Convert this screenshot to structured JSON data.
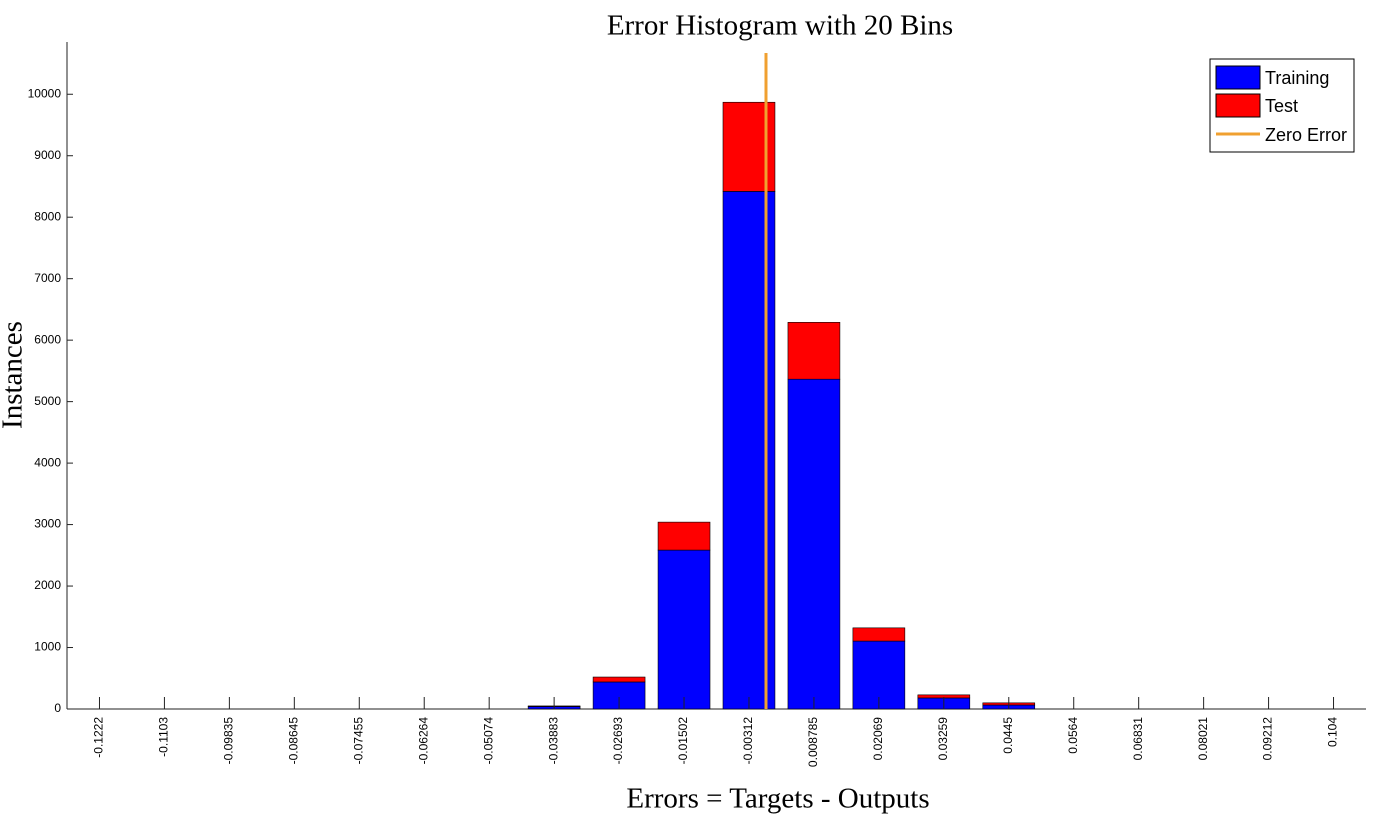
{
  "chart_data": {
    "type": "stacked_bar",
    "title": "Error Histogram with 20 Bins",
    "x_label": "Errors = Targets - Outputs",
    "y_label": "Instances",
    "categories": [
      "-0.1222",
      "-0.1103",
      "-0.09835",
      "-0.08645",
      "-0.07455",
      "-0.06264",
      "-0.05074",
      "-0.03883",
      "-0.02693",
      "-0.01502",
      "-0.00312",
      "0.008785",
      "0.02069",
      "0.03259",
      "0.0445",
      "0.0564",
      "0.06831",
      "0.08021",
      "0.09212",
      "0.104"
    ],
    "series": [
      {
        "name": "Training",
        "color": "#0000ff",
        "values": [
          0,
          0,
          0,
          0,
          0,
          0,
          0,
          40,
          440,
          2585,
          8420,
          5365,
          1105,
          180,
          65,
          0,
          0,
          0,
          0,
          0
        ]
      },
      {
        "name": "Test",
        "color": "#ff0000",
        "values": [
          0,
          0,
          0,
          0,
          0,
          0,
          0,
          10,
          80,
          455,
          1450,
          925,
          215,
          50,
          35,
          0,
          0,
          0,
          0,
          0
        ]
      }
    ],
    "reference_line": {
      "name": "Zero Error",
      "color": "#f0a030",
      "x": 0
    },
    "ylim": [
      0,
      10850
    ],
    "yticks": [
      0,
      1000,
      2000,
      3000,
      4000,
      5000,
      6000,
      7000,
      8000,
      9000,
      10000
    ],
    "legend": "upper right"
  }
}
